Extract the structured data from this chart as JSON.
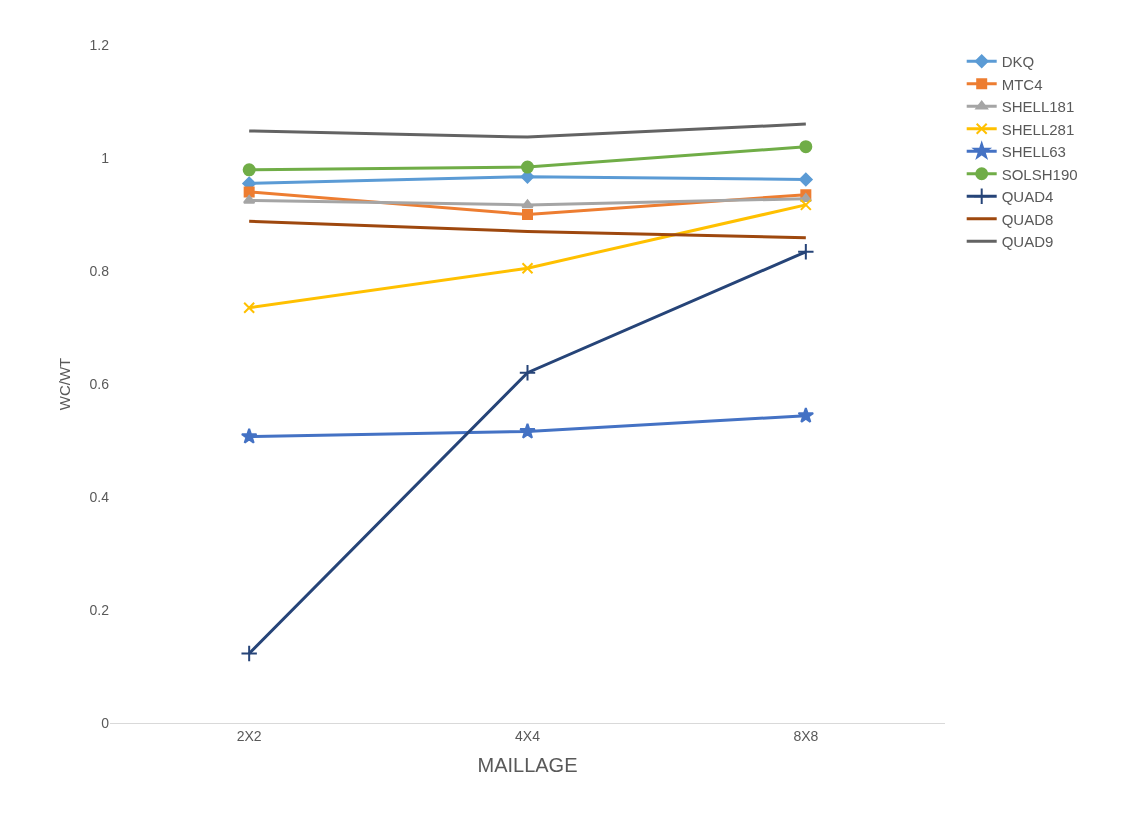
{
  "chart_data": {
    "type": "line",
    "xlabel": "MAILLAGE",
    "ylabel": "WC/WT",
    "categories": [
      "2X2",
      "4X4",
      "8X8"
    ],
    "ylim": [
      0,
      1.2
    ],
    "yticks": [
      0,
      0.2,
      0.4,
      0.6,
      0.8,
      1,
      1.2
    ],
    "grid": false,
    "legend": "right",
    "series": [
      {
        "name": "DKQ",
        "color": "#5b9bd5",
        "marker": "diamond",
        "values": [
          0.955,
          0.967,
          0.962
        ]
      },
      {
        "name": "MTC4",
        "color": "#ed7d31",
        "marker": "square",
        "values": [
          0.94,
          0.9,
          0.935
        ]
      },
      {
        "name": "SHELL181",
        "color": "#a5a5a5",
        "marker": "triangle",
        "values": [
          0.925,
          0.917,
          0.928
        ]
      },
      {
        "name": "SHELL281",
        "color": "#ffc000",
        "marker": "x",
        "values": [
          0.735,
          0.805,
          0.917
        ]
      },
      {
        "name": "SHELL63",
        "color": "#4472c4",
        "marker": "star",
        "values": [
          0.507,
          0.516,
          0.544
        ]
      },
      {
        "name": "SOLSH190",
        "color": "#70ad47",
        "marker": "circle",
        "values": [
          0.979,
          0.984,
          1.02
        ]
      },
      {
        "name": "QUAD4",
        "color": "#264478",
        "marker": "cross",
        "values": [
          0.123,
          0.62,
          0.834
        ]
      },
      {
        "name": "QUAD8",
        "color": "#9e480e",
        "marker": "none",
        "values": [
          0.888,
          0.87,
          0.859
        ]
      },
      {
        "name": "QUAD9",
        "color": "#636363",
        "marker": "none",
        "values": [
          1.048,
          1.037,
          1.06
        ]
      }
    ]
  }
}
